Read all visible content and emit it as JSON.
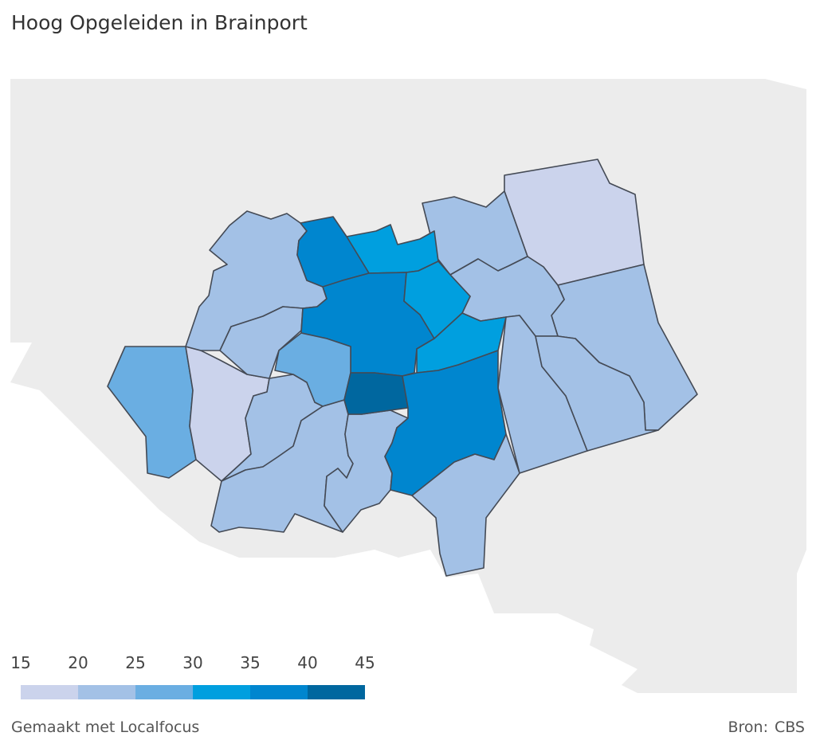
{
  "title": "Hoog Opgeleiden in Brainport",
  "legend": {
    "ticks": [
      "15",
      "20",
      "25",
      "30",
      "35",
      "40",
      "45"
    ],
    "bins": [
      {
        "from": 15,
        "to": 20,
        "color": "#cbd3ec"
      },
      {
        "from": 20,
        "to": 25,
        "color": "#a3c1e6"
      },
      {
        "from": 25,
        "to": 30,
        "color": "#6aaee2"
      },
      {
        "from": 30,
        "to": 35,
        "color": "#009fdf"
      },
      {
        "from": 35,
        "to": 40,
        "color": "#0086cf"
      },
      {
        "from": 40,
        "to": 45,
        "color": "#00679f"
      }
    ]
  },
  "map": {
    "background_color": "#ececec",
    "border_color": "#444a55"
  },
  "footer": {
    "credit": "Gemaakt met Localfocus",
    "source_label": "Bron:",
    "source": "CBS"
  }
}
